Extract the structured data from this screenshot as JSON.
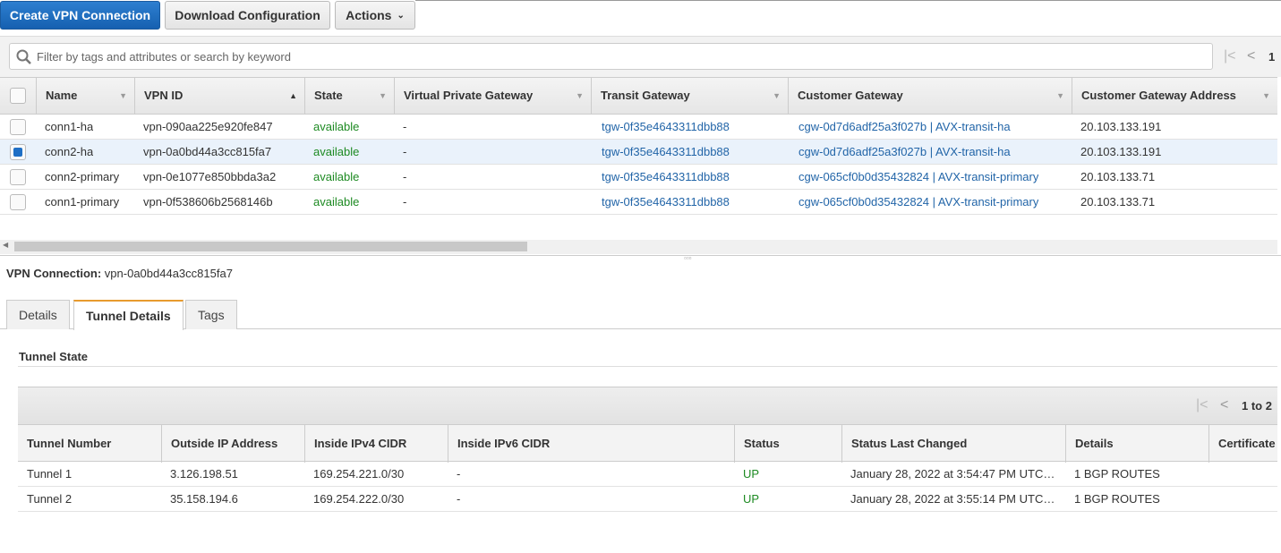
{
  "toolbar": {
    "create": "Create VPN Connection",
    "download": "Download Configuration",
    "actions": "Actions"
  },
  "search": {
    "placeholder": "Filter by tags and attributes or search by keyword",
    "pager": "1"
  },
  "table": {
    "columns": [
      "Name",
      "VPN ID",
      "State",
      "Virtual Private Gateway",
      "Transit Gateway",
      "Customer Gateway",
      "Customer Gateway Address"
    ],
    "rows": [
      {
        "name": "conn1-ha",
        "id": "vpn-090aa225e920fe847",
        "state": "available",
        "vpg": "-",
        "tgw": "tgw-0f35e4643311dbb88",
        "cgw": "cgw-0d7d6adf25a3f027b | AVX-transit-ha",
        "addr": "20.103.133.191",
        "selected": false
      },
      {
        "name": "conn2-ha",
        "id": "vpn-0a0bd44a3cc815fa7",
        "state": "available",
        "vpg": "-",
        "tgw": "tgw-0f35e4643311dbb88",
        "cgw": "cgw-0d7d6adf25a3f027b | AVX-transit-ha",
        "addr": "20.103.133.191",
        "selected": true
      },
      {
        "name": "conn2-primary",
        "id": "vpn-0e1077e850bbda3a2",
        "state": "available",
        "vpg": "-",
        "tgw": "tgw-0f35e4643311dbb88",
        "cgw": "cgw-065cf0b0d35432824 | AVX-transit-primary",
        "addr": "20.103.133.71",
        "selected": false
      },
      {
        "name": "conn1-primary",
        "id": "vpn-0f538606b2568146b",
        "state": "available",
        "vpg": "-",
        "tgw": "tgw-0f35e4643311dbb88",
        "cgw": "cgw-065cf0b0d35432824 | AVX-transit-primary",
        "addr": "20.103.133.71",
        "selected": false
      }
    ]
  },
  "detail": {
    "label": "VPN Connection:",
    "value": "vpn-0a0bd44a3cc815fa7",
    "tabs": [
      "Details",
      "Tunnel Details",
      "Tags"
    ],
    "section": "Tunnel State",
    "pager": "1 to 2",
    "columns": [
      "Tunnel Number",
      "Outside IP Address",
      "Inside IPv4 CIDR",
      "Inside IPv6 CIDR",
      "Status",
      "Status Last Changed",
      "Details",
      "Certificate"
    ],
    "rows": [
      [
        "Tunnel 1",
        "3.126.198.51",
        "169.254.221.0/30",
        "-",
        "UP",
        "January 28, 2022 at 3:54:47 PM UTC…",
        "1 BGP ROUTES",
        ""
      ],
      [
        "Tunnel 2",
        "35.158.194.6",
        "169.254.222.0/30",
        "-",
        "UP",
        "January 28, 2022 at 3:55:14 PM UTC…",
        "1 BGP ROUTES",
        ""
      ]
    ]
  },
  "colors": {
    "primary": "#1f6fc5",
    "link": "#2265a8",
    "status_ok": "#1d8a22",
    "tab_accent": "#e89b2e"
  }
}
